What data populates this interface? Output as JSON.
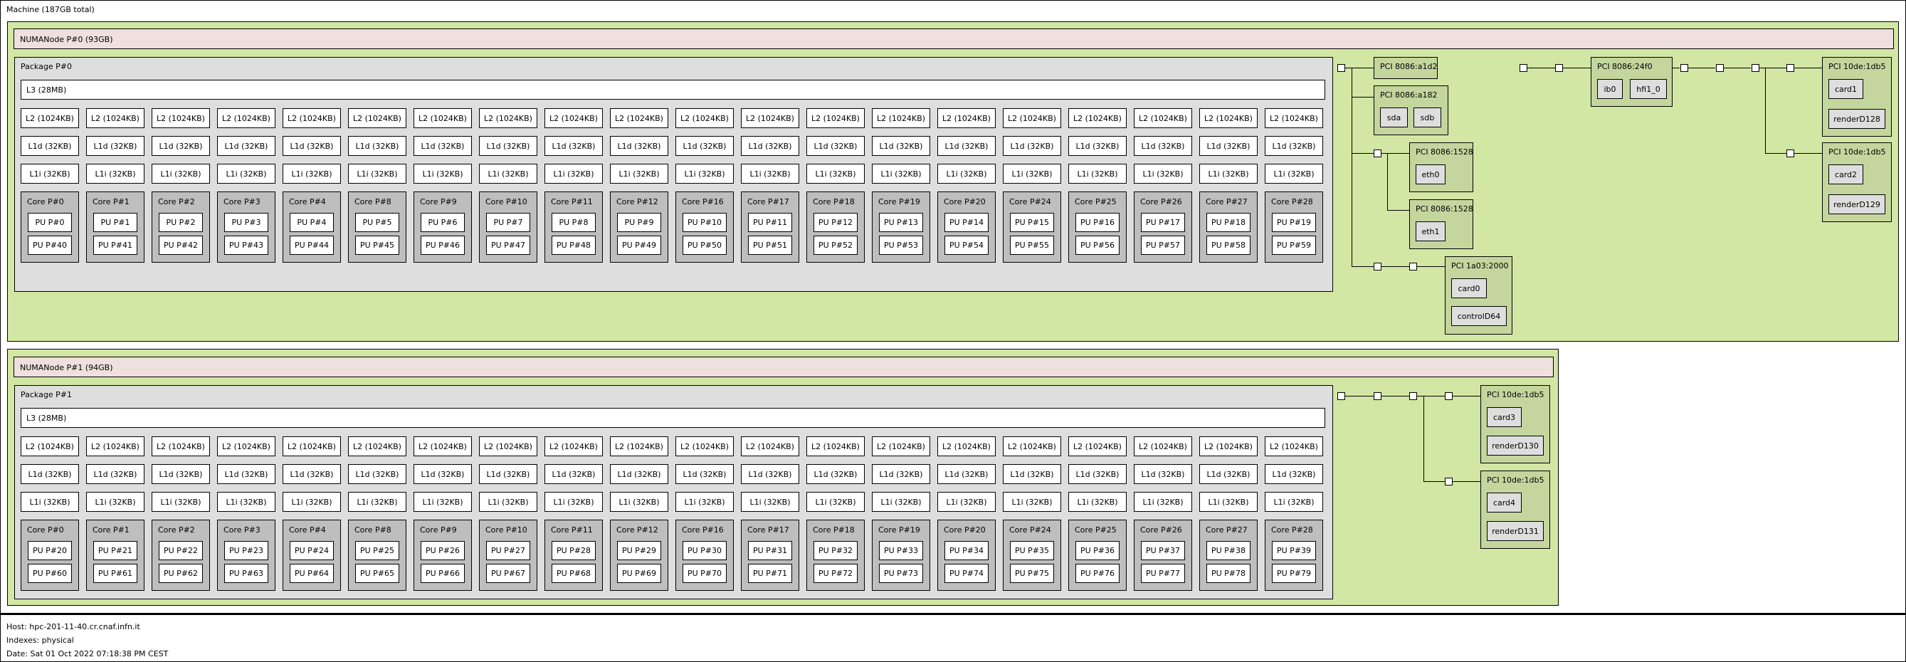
{
  "machine_label": "Machine (187GB total)",
  "footer": {
    "host": "Host: hpc-201-11-40.cr.cnaf.infn.it",
    "indexes": "Indexes: physical",
    "date": "Date: Sat 01 Oct 2022 07:18:38 PM CEST"
  },
  "cache_labels": {
    "l2": "L2 (1024KB)",
    "l1d": "L1d (32KB)",
    "l1i": "L1i (32KB)"
  },
  "numa": [
    {
      "label": "NUMANode P#0 (93GB)",
      "package": "Package P#0",
      "l3": "L3 (28MB)",
      "cores": [
        {
          "label": "Core P#0",
          "pus": [
            "PU P#0",
            "PU P#40"
          ]
        },
        {
          "label": "Core P#1",
          "pus": [
            "PU P#1",
            "PU P#41"
          ]
        },
        {
          "label": "Core P#2",
          "pus": [
            "PU P#2",
            "PU P#42"
          ]
        },
        {
          "label": "Core P#3",
          "pus": [
            "PU P#3",
            "PU P#43"
          ]
        },
        {
          "label": "Core P#4",
          "pus": [
            "PU P#4",
            "PU P#44"
          ]
        },
        {
          "label": "Core P#8",
          "pus": [
            "PU P#5",
            "PU P#45"
          ]
        },
        {
          "label": "Core P#9",
          "pus": [
            "PU P#6",
            "PU P#46"
          ]
        },
        {
          "label": "Core P#10",
          "pus": [
            "PU P#7",
            "PU P#47"
          ]
        },
        {
          "label": "Core P#11",
          "pus": [
            "PU P#8",
            "PU P#48"
          ]
        },
        {
          "label": "Core P#12",
          "pus": [
            "PU P#9",
            "PU P#49"
          ]
        },
        {
          "label": "Core P#16",
          "pus": [
            "PU P#10",
            "PU P#50"
          ]
        },
        {
          "label": "Core P#17",
          "pus": [
            "PU P#11",
            "PU P#51"
          ]
        },
        {
          "label": "Core P#18",
          "pus": [
            "PU P#12",
            "PU P#52"
          ]
        },
        {
          "label": "Core P#19",
          "pus": [
            "PU P#13",
            "PU P#53"
          ]
        },
        {
          "label": "Core P#20",
          "pus": [
            "PU P#14",
            "PU P#54"
          ]
        },
        {
          "label": "Core P#24",
          "pus": [
            "PU P#15",
            "PU P#55"
          ]
        },
        {
          "label": "Core P#25",
          "pus": [
            "PU P#16",
            "PU P#56"
          ]
        },
        {
          "label": "Core P#26",
          "pus": [
            "PU P#17",
            "PU P#57"
          ]
        },
        {
          "label": "Core P#27",
          "pus": [
            "PU P#18",
            "PU P#58"
          ]
        },
        {
          "label": "Core P#28",
          "pus": [
            "PU P#19",
            "PU P#59"
          ]
        }
      ],
      "pci": [
        {
          "label": "PCI 8086:a1d2",
          "os": []
        },
        {
          "label": "PCI 8086:a182",
          "os": [
            "sda",
            "sdb"
          ]
        },
        {
          "label": "PCI 8086:1528",
          "os": [
            "eth0"
          ]
        },
        {
          "label": "PCI 8086:1528",
          "os": [
            "eth1"
          ]
        },
        {
          "label": "PCI 1a03:2000",
          "os": [
            "card0",
            "controlD64"
          ]
        },
        {
          "label": "PCI 8086:24f0",
          "os": [
            "ib0",
            "hfi1_0"
          ]
        },
        {
          "label": "PCI 10de:1db5",
          "os": [
            "card1",
            "renderD128"
          ]
        },
        {
          "label": "PCI 10de:1db5",
          "os": [
            "card2",
            "renderD129"
          ]
        }
      ]
    },
    {
      "label": "NUMANode P#1 (94GB)",
      "package": "Package P#1",
      "l3": "L3 (28MB)",
      "cores": [
        {
          "label": "Core P#0",
          "pus": [
            "PU P#20",
            "PU P#60"
          ]
        },
        {
          "label": "Core P#1",
          "pus": [
            "PU P#21",
            "PU P#61"
          ]
        },
        {
          "label": "Core P#2",
          "pus": [
            "PU P#22",
            "PU P#62"
          ]
        },
        {
          "label": "Core P#3",
          "pus": [
            "PU P#23",
            "PU P#63"
          ]
        },
        {
          "label": "Core P#4",
          "pus": [
            "PU P#24",
            "PU P#64"
          ]
        },
        {
          "label": "Core P#8",
          "pus": [
            "PU P#25",
            "PU P#65"
          ]
        },
        {
          "label": "Core P#9",
          "pus": [
            "PU P#26",
            "PU P#66"
          ]
        },
        {
          "label": "Core P#10",
          "pus": [
            "PU P#27",
            "PU P#67"
          ]
        },
        {
          "label": "Core P#11",
          "pus": [
            "PU P#28",
            "PU P#68"
          ]
        },
        {
          "label": "Core P#12",
          "pus": [
            "PU P#29",
            "PU P#69"
          ]
        },
        {
          "label": "Core P#16",
          "pus": [
            "PU P#30",
            "PU P#70"
          ]
        },
        {
          "label": "Core P#17",
          "pus": [
            "PU P#31",
            "PU P#71"
          ]
        },
        {
          "label": "Core P#18",
          "pus": [
            "PU P#32",
            "PU P#72"
          ]
        },
        {
          "label": "Core P#19",
          "pus": [
            "PU P#33",
            "PU P#73"
          ]
        },
        {
          "label": "Core P#20",
          "pus": [
            "PU P#34",
            "PU P#74"
          ]
        },
        {
          "label": "Core P#24",
          "pus": [
            "PU P#35",
            "PU P#75"
          ]
        },
        {
          "label": "Core P#25",
          "pus": [
            "PU P#36",
            "PU P#76"
          ]
        },
        {
          "label": "Core P#26",
          "pus": [
            "PU P#37",
            "PU P#77"
          ]
        },
        {
          "label": "Core P#27",
          "pus": [
            "PU P#38",
            "PU P#78"
          ]
        },
        {
          "label": "Core P#28",
          "pus": [
            "PU P#39",
            "PU P#79"
          ]
        }
      ],
      "pci": [
        {
          "label": "PCI 10de:1db5",
          "os": [
            "card3",
            "renderD130"
          ]
        },
        {
          "label": "PCI 10de:1db5",
          "os": [
            "card4",
            "renderD131"
          ]
        }
      ]
    }
  ]
}
